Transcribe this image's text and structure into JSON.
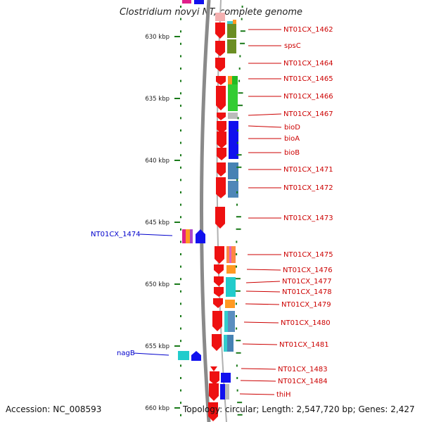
{
  "title": "Clostridium novyi NT, complete genome",
  "accession": "Accession: NC_008593",
  "topology": "Topology: circular; Length: 2,547,720 bp; Genes: 2,427",
  "ticks": [
    "630 kbp",
    "635 kbp",
    "640 kbp",
    "645 kbp",
    "650 kbp",
    "655 kbp",
    "660 kbp"
  ],
  "colors": {
    "forward_gene": "#ee1111",
    "reverse_gene": "#1111ee",
    "forward_label": "#cc0000",
    "reverse_label": "#0000cc",
    "backbone": "#888888",
    "tick": "#1a7a1a"
  },
  "genes_forward": [
    {
      "label": "NT01CX_1462"
    },
    {
      "label": "spsC"
    },
    {
      "label": "NT01CX_1464"
    },
    {
      "label": "NT01CX_1465"
    },
    {
      "label": "NT01CX_1466"
    },
    {
      "label": "NT01CX_1467"
    },
    {
      "label": "bioD"
    },
    {
      "label": "bioA"
    },
    {
      "label": "bioB"
    },
    {
      "label": "NT01CX_1471"
    },
    {
      "label": "NT01CX_1472"
    },
    {
      "label": "NT01CX_1473"
    },
    {
      "label": "NT01CX_1475"
    },
    {
      "label": "NT01CX_1476"
    },
    {
      "label": "NT01CX_1477"
    },
    {
      "label": "NT01CX_1478"
    },
    {
      "label": "NT01CX_1479"
    },
    {
      "label": "NT01CX_1480"
    },
    {
      "label": "NT01CX_1481"
    },
    {
      "label": "NT01CX_1483"
    },
    {
      "label": "NT01CX_1484"
    },
    {
      "label": "thiH"
    }
  ],
  "genes_reverse": [
    {
      "label": "NT01CX_1474"
    },
    {
      "label": "nagB"
    }
  ]
}
